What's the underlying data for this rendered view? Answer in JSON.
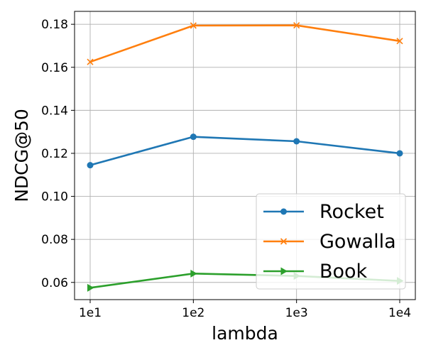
{
  "chart_data": {
    "type": "line",
    "xlabel": "lambda",
    "ylabel": "NDCG@50",
    "categories": [
      "1e1",
      "1e2",
      "1e3",
      "1e4"
    ],
    "ylim": [
      0.052,
      0.186
    ],
    "yticks": [
      "0.06",
      "0.08",
      "0.10",
      "0.12",
      "0.14",
      "0.16",
      "0.18"
    ],
    "grid": true,
    "legend_position": "lower-right",
    "series": [
      {
        "name": "Rocket",
        "values": [
          0.1145,
          0.1277,
          0.1256,
          0.12
        ],
        "color": "#1f77b4",
        "marker": "circle"
      },
      {
        "name": "Gowalla",
        "values": [
          0.1625,
          0.1794,
          0.1795,
          0.1722
        ],
        "color": "#ff7f0e",
        "marker": "x"
      },
      {
        "name": "Book",
        "values": [
          0.0575,
          0.0641,
          0.063,
          0.0607
        ],
        "color": "#2ca02c",
        "marker": "triangle-right"
      }
    ]
  }
}
